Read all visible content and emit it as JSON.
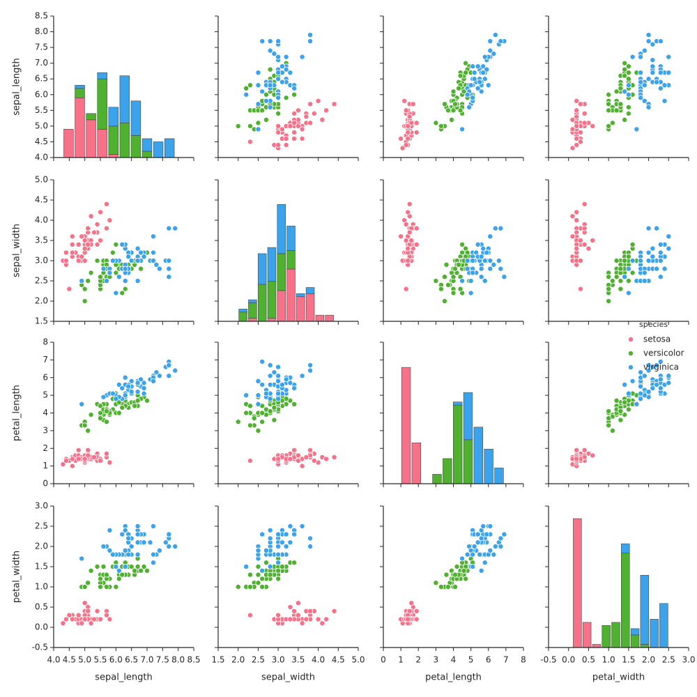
{
  "chart_data": {
    "type": "pairplot",
    "axes": [
      {
        "label": "sepal_length",
        "lim": [
          4,
          8.5
        ],
        "ticks": [
          {
            "value": 4,
            "label": "4.0"
          },
          4.5,
          {
            "value": 5,
            "label": "5.0"
          },
          5.5,
          {
            "value": 6,
            "label": "6.0"
          },
          6.5,
          {
            "value": 7,
            "label": "7.0"
          },
          7.5,
          {
            "value": 8,
            "label": "8.0"
          },
          8.5
        ]
      },
      {
        "label": "sepal_width",
        "lim": [
          1.5,
          5
        ],
        "ticks": [
          1.5,
          {
            "value": 2,
            "label": "2.0"
          },
          2.5,
          {
            "value": 3,
            "label": "3.0"
          },
          3.5,
          {
            "value": 4,
            "label": "4.0"
          },
          4.5,
          {
            "value": 5,
            "label": "5.0"
          }
        ]
      },
      {
        "label": "petal_length",
        "lim": [
          0,
          8
        ],
        "ticks": [
          0,
          1,
          2,
          3,
          4,
          5,
          6,
          7,
          8
        ]
      },
      {
        "label": "petal_width",
        "lim": [
          -0.5,
          3
        ],
        "ticks": [
          -0.5,
          {
            "value": 0,
            "label": "0.0"
          },
          0.5,
          {
            "value": 1,
            "label": "1.0"
          },
          1.5,
          {
            "value": 2,
            "label": "2.0"
          },
          2.5,
          {
            "value": 3,
            "label": "3.0"
          }
        ]
      }
    ],
    "legend_title": "species",
    "legend_position": "center right",
    "series": [
      {
        "name": "setosa",
        "color": "#f77189",
        "values": [
          [
            5.1,
            4.9,
            4.7,
            4.6,
            5.0,
            5.4,
            4.6,
            5.0,
            4.4,
            4.9,
            5.4,
            4.8,
            4.8,
            4.3,
            5.8,
            5.7,
            5.4,
            5.1,
            5.7,
            5.1,
            5.4,
            5.1,
            4.6,
            5.1,
            4.8,
            5.0,
            5.0,
            5.2,
            5.2,
            4.7,
            4.8,
            5.4,
            5.2,
            5.5,
            4.9,
            5.0,
            5.5,
            4.9,
            4.4,
            5.1,
            5.0,
            4.5,
            4.4,
            5.0,
            5.1,
            4.8,
            5.1,
            4.6,
            5.3,
            5.0
          ],
          [
            3.5,
            3.0,
            3.2,
            3.1,
            3.6,
            3.9,
            3.4,
            3.4,
            2.9,
            3.1,
            3.7,
            3.4,
            3.0,
            3.0,
            4.0,
            4.4,
            3.9,
            3.5,
            3.8,
            3.8,
            3.4,
            3.7,
            3.6,
            3.3,
            3.4,
            3.0,
            3.4,
            3.5,
            3.4,
            3.2,
            3.1,
            3.4,
            4.1,
            4.2,
            3.1,
            3.2,
            3.5,
            3.6,
            3.0,
            3.4,
            3.5,
            2.3,
            3.2,
            3.5,
            3.8,
            3.0,
            3.8,
            3.2,
            3.7,
            3.3
          ],
          [
            1.4,
            1.4,
            1.3,
            1.5,
            1.4,
            1.7,
            1.4,
            1.5,
            1.4,
            1.5,
            1.5,
            1.6,
            1.4,
            1.1,
            1.2,
            1.5,
            1.3,
            1.4,
            1.7,
            1.5,
            1.7,
            1.5,
            1.0,
            1.7,
            1.9,
            1.6,
            1.6,
            1.5,
            1.4,
            1.6,
            1.6,
            1.5,
            1.5,
            1.4,
            1.5,
            1.2,
            1.3,
            1.4,
            1.3,
            1.5,
            1.3,
            1.3,
            1.3,
            1.6,
            1.9,
            1.4,
            1.6,
            1.4,
            1.5,
            1.4
          ],
          [
            0.2,
            0.2,
            0.2,
            0.2,
            0.2,
            0.4,
            0.3,
            0.2,
            0.2,
            0.1,
            0.2,
            0.2,
            0.1,
            0.1,
            0.2,
            0.4,
            0.4,
            0.3,
            0.3,
            0.3,
            0.2,
            0.4,
            0.2,
            0.5,
            0.2,
            0.2,
            0.4,
            0.2,
            0.2,
            0.2,
            0.2,
            0.4,
            0.1,
            0.2,
            0.2,
            0.2,
            0.2,
            0.1,
            0.2,
            0.2,
            0.3,
            0.3,
            0.2,
            0.6,
            0.4,
            0.3,
            0.2,
            0.2,
            0.2,
            0.2
          ]
        ]
      },
      {
        "name": "versicolor",
        "color": "#50b131",
        "values": [
          [
            7.0,
            6.4,
            6.9,
            5.5,
            6.5,
            5.7,
            6.3,
            4.9,
            6.6,
            5.2,
            5.0,
            5.9,
            6.0,
            6.1,
            5.6,
            6.7,
            5.6,
            5.8,
            6.2,
            5.6,
            5.9,
            6.1,
            6.3,
            6.1,
            6.4,
            6.6,
            6.8,
            6.7,
            6.0,
            5.7,
            5.5,
            5.5,
            5.8,
            6.0,
            5.4,
            6.0,
            6.7,
            6.3,
            5.6,
            5.5,
            5.5,
            6.1,
            5.8,
            5.0,
            5.6,
            5.7,
            5.7,
            6.2,
            5.1,
            5.7
          ],
          [
            3.2,
            3.2,
            3.1,
            2.3,
            2.8,
            2.8,
            3.3,
            2.4,
            2.9,
            2.7,
            2.0,
            3.0,
            2.2,
            2.9,
            2.9,
            3.1,
            3.0,
            2.7,
            2.2,
            2.5,
            3.2,
            2.8,
            2.5,
            2.8,
            2.9,
            3.0,
            2.8,
            3.0,
            2.9,
            2.6,
            2.4,
            2.4,
            2.7,
            2.7,
            3.0,
            3.4,
            3.1,
            2.3,
            3.0,
            2.5,
            2.6,
            3.0,
            2.6,
            2.3,
            2.7,
            3.0,
            2.9,
            2.9,
            2.5,
            2.8
          ],
          [
            4.7,
            4.5,
            4.9,
            4.0,
            4.6,
            4.5,
            4.7,
            3.3,
            4.6,
            3.9,
            3.5,
            4.2,
            4.0,
            4.7,
            3.6,
            4.4,
            4.5,
            4.1,
            4.5,
            3.9,
            4.8,
            4.0,
            4.9,
            4.7,
            4.3,
            4.4,
            4.8,
            5.0,
            4.5,
            3.5,
            3.8,
            3.7,
            3.9,
            5.1,
            4.5,
            4.5,
            4.7,
            4.4,
            4.1,
            4.0,
            4.4,
            4.6,
            4.0,
            3.3,
            4.2,
            4.2,
            4.2,
            4.3,
            3.0,
            4.1
          ],
          [
            1.4,
            1.5,
            1.5,
            1.3,
            1.5,
            1.3,
            1.6,
            1.0,
            1.3,
            1.4,
            1.0,
            1.5,
            1.0,
            1.4,
            1.3,
            1.4,
            1.5,
            1.0,
            1.5,
            1.1,
            1.8,
            1.3,
            1.5,
            1.2,
            1.3,
            1.4,
            1.4,
            1.7,
            1.5,
            1.0,
            1.1,
            1.0,
            1.2,
            1.6,
            1.5,
            1.6,
            1.5,
            1.3,
            1.3,
            1.3,
            1.2,
            1.4,
            1.2,
            1.0,
            1.3,
            1.2,
            1.3,
            1.3,
            1.1,
            1.3
          ]
        ]
      },
      {
        "name": "virginica",
        "color": "#3ba3ec",
        "values": [
          [
            6.3,
            5.8,
            7.1,
            6.3,
            6.5,
            7.6,
            4.9,
            7.3,
            6.7,
            7.2,
            6.5,
            6.4,
            6.8,
            5.7,
            5.8,
            6.4,
            6.5,
            7.7,
            7.7,
            6.0,
            6.9,
            5.6,
            7.7,
            6.3,
            6.7,
            7.2,
            6.2,
            6.1,
            6.4,
            7.2,
            7.4,
            7.9,
            6.4,
            6.3,
            6.1,
            7.7,
            6.3,
            6.4,
            6.0,
            6.9,
            6.7,
            6.9,
            5.8,
            6.8,
            6.7,
            6.7,
            6.3,
            6.5,
            6.2,
            5.9
          ],
          [
            3.3,
            2.7,
            3.0,
            2.9,
            3.0,
            3.0,
            2.5,
            2.9,
            2.5,
            3.6,
            3.2,
            2.7,
            3.0,
            2.5,
            2.8,
            3.2,
            3.0,
            3.8,
            2.6,
            2.2,
            3.2,
            2.8,
            2.8,
            2.7,
            3.3,
            3.2,
            2.8,
            3.0,
            2.8,
            3.0,
            2.8,
            3.8,
            2.8,
            2.8,
            2.6,
            3.0,
            3.4,
            3.1,
            3.0,
            3.1,
            3.1,
            3.1,
            2.7,
            3.2,
            3.3,
            3.0,
            2.5,
            3.0,
            3.4,
            3.0
          ],
          [
            6.0,
            5.1,
            5.9,
            5.6,
            5.8,
            6.6,
            4.5,
            6.3,
            5.8,
            6.1,
            5.1,
            5.3,
            5.5,
            5.0,
            5.1,
            5.3,
            5.5,
            6.7,
            6.9,
            5.0,
            5.7,
            4.9,
            6.7,
            4.9,
            5.7,
            6.0,
            4.8,
            4.9,
            5.6,
            5.8,
            6.1,
            6.4,
            5.6,
            5.1,
            5.6,
            6.1,
            5.6,
            5.5,
            4.8,
            5.4,
            5.6,
            5.1,
            5.1,
            5.9,
            5.7,
            5.2,
            5.0,
            5.2,
            5.4,
            5.1
          ],
          [
            2.5,
            1.9,
            2.1,
            1.8,
            2.2,
            2.1,
            1.7,
            1.8,
            1.8,
            2.5,
            2.0,
            1.9,
            2.1,
            2.0,
            2.4,
            2.3,
            1.8,
            2.2,
            2.3,
            1.5,
            2.3,
            2.0,
            2.0,
            1.8,
            2.1,
            1.8,
            1.8,
            1.8,
            2.1,
            1.6,
            1.9,
            2.0,
            2.2,
            1.5,
            1.4,
            2.3,
            2.4,
            1.8,
            1.8,
            2.1,
            2.4,
            2.3,
            1.9,
            2.3,
            2.5,
            2.3,
            1.9,
            2.0,
            2.3,
            1.8
          ]
        ]
      }
    ],
    "hist": [
      {
        "bins": [
          4.3,
          4.66,
          5.02,
          5.38,
          5.74,
          6.1,
          6.46,
          6.82,
          7.18,
          7.54,
          7.9
        ],
        "ylim": [
          0,
          45
        ],
        "counts": [
          [
            9,
            19,
            12,
            9,
            1,
            0,
            0,
            0,
            0,
            0
          ],
          [
            0,
            3,
            2,
            16,
            9,
            11,
            7,
            2,
            0,
            0
          ],
          [
            0,
            1,
            0,
            2,
            6,
            15,
            11,
            4,
            5,
            6
          ]
        ]
      },
      {
        "bins": [
          2.0,
          2.24,
          2.48,
          2.72,
          2.96,
          3.2,
          3.44,
          3.68,
          3.92,
          4.16,
          4.4
        ],
        "ylim": [
          0,
          46
        ],
        "counts": [
          [
            0,
            1,
            0,
            1,
            10,
            17,
            8,
            9,
            2,
            2
          ],
          [
            3,
            5,
            12,
            12,
            12,
            6,
            0,
            0,
            0,
            0
          ],
          [
            1,
            1,
            10,
            11,
            16,
            8,
            1,
            2,
            0,
            0
          ]
        ]
      },
      {
        "bins": [
          1.0,
          1.59,
          2.18,
          2.77,
          3.36,
          3.95,
          4.54,
          5.13,
          5.72,
          6.31,
          6.9
        ],
        "ylim": [
          0,
          45
        ],
        "counts": [
          [
            37,
            13,
            0,
            0,
            0,
            0,
            0,
            0,
            0,
            0
          ],
          [
            0,
            0,
            0,
            3,
            8,
            25,
            14,
            0,
            0,
            0
          ],
          [
            0,
            0,
            0,
            0,
            0,
            1,
            15,
            18,
            11,
            5
          ]
        ]
      },
      {
        "bins": [
          0.1,
          0.34,
          0.58,
          0.82,
          1.06,
          1.3,
          1.54,
          1.78,
          2.02,
          2.26,
          2.5
        ],
        "ylim": [
          0,
          45
        ],
        "counts": [
          [
            41,
            8,
            1,
            0,
            0,
            0,
            0,
            0,
            0,
            0
          ],
          [
            0,
            0,
            0,
            7,
            8,
            30,
            4,
            1,
            0,
            0
          ],
          [
            0,
            0,
            0,
            0,
            0,
            3,
            2,
            22,
            9,
            14
          ]
        ]
      }
    ]
  }
}
